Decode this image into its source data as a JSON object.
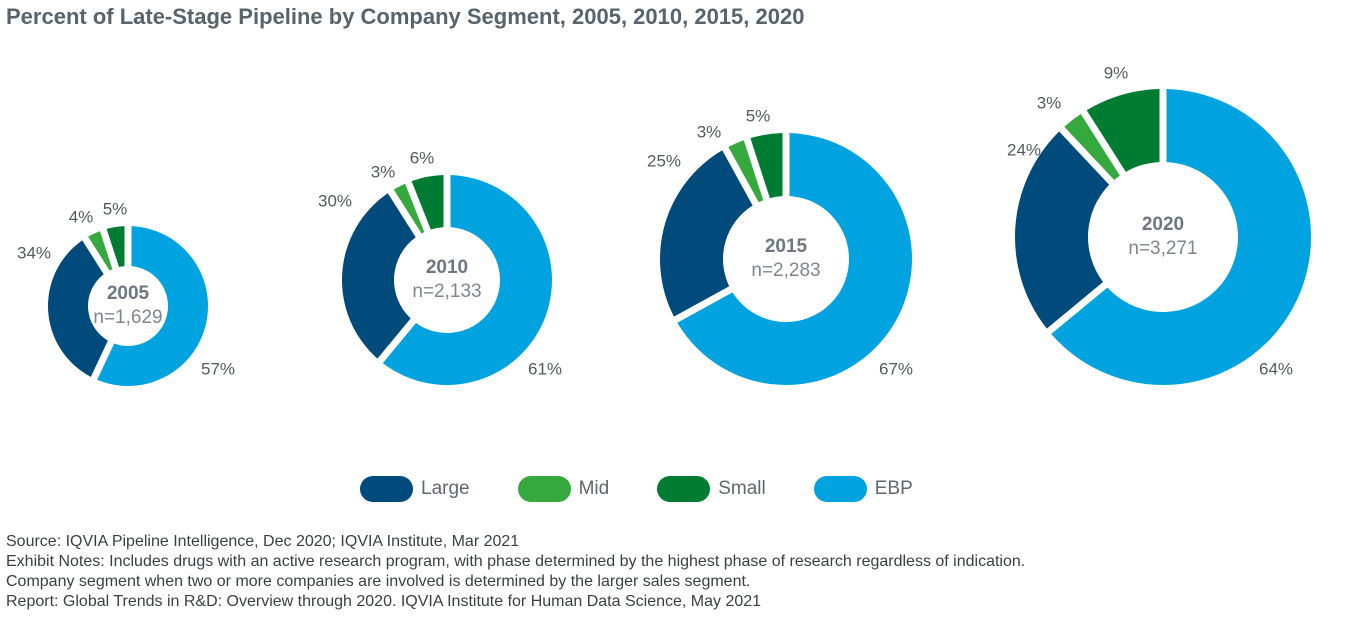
{
  "title": "Percent of Late-Stage Pipeline by Company Segment, 2005, 2010, 2015, 2020",
  "chart_data": {
    "type": "pie",
    "subtype": "donut",
    "title": "Percent of Late-Stage Pipeline by Company Segment, 2005, 2010, 2015, 2020",
    "segments": [
      "Large",
      "Mid",
      "Small",
      "EBP"
    ],
    "colors": {
      "Large": "#004a7c",
      "Mid": "#35a93d",
      "Small": "#007c32",
      "EBP": "#00a3e0"
    },
    "legend_placement": "bottom",
    "charts": [
      {
        "year": "2005",
        "n_label": "n=1,629",
        "values": [
          34,
          4,
          5,
          57
        ],
        "labels": [
          "34%",
          "4%",
          "5%",
          "57%"
        ]
      },
      {
        "year": "2010",
        "n_label": "n=2,133",
        "values": [
          30,
          3,
          6,
          61
        ],
        "labels": [
          "30%",
          "3%",
          "6%",
          "61%"
        ]
      },
      {
        "year": "2015",
        "n_label": "n=2,283",
        "values": [
          25,
          3,
          5,
          67
        ],
        "labels": [
          "25%",
          "3%",
          "5%",
          "67%"
        ]
      },
      {
        "year": "2020",
        "n_label": "n=3,271",
        "values": [
          24,
          3,
          9,
          64
        ],
        "labels": [
          "24%",
          "3%",
          "9%",
          "64%"
        ]
      }
    ]
  },
  "legend": [
    {
      "label": "Large",
      "color": "#004a7c"
    },
    {
      "label": "Mid",
      "color": "#35a93d"
    },
    {
      "label": "Small",
      "color": "#007c32"
    },
    {
      "label": "EBP",
      "color": "#00a3e0"
    }
  ],
  "notes": {
    "source": "Source: IQVIA Pipeline Intelligence, Dec 2020; IQVIA Institute, Mar 2021",
    "exhibit_notes": "Exhibit Notes: Includes drugs with an active research program, with phase determined by the highest phase of research regardless of indication.",
    "company_note": "Company segment when two or more companies are involved is determined by the larger sales segment.",
    "report": "Report: Global Trends in R&D: Overview through 2020. IQVIA Institute for Human Data Science, May 2021"
  }
}
